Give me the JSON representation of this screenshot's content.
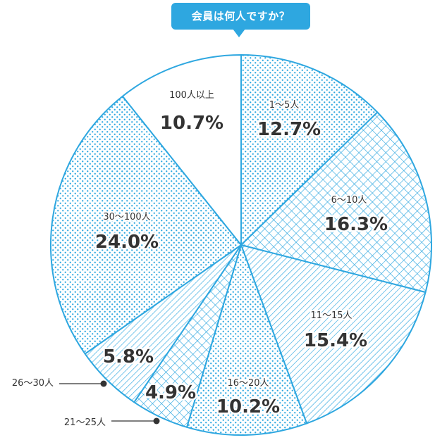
{
  "question": "会員は何人ですか？",
  "colors": {
    "accent": "#2ea7e0",
    "text": "#333333",
    "background": "#ffffff"
  },
  "chart_data": {
    "type": "pie",
    "title": "",
    "slices": [
      {
        "label": "1〜5人",
        "value": 12.7,
        "display": "12.7%",
        "pattern": "dots"
      },
      {
        "label": "6〜10人",
        "value": 16.3,
        "display": "16.3%",
        "pattern": "crosshatch"
      },
      {
        "label": "11〜15人",
        "value": 15.4,
        "display": "15.4%",
        "pattern": "diagonal"
      },
      {
        "label": "16〜20人",
        "value": 10.2,
        "display": "10.2%",
        "pattern": "dots"
      },
      {
        "label": "21〜25人",
        "value": 4.9,
        "display": "4.9%",
        "pattern": "crosshatch"
      },
      {
        "label": "26〜30人",
        "value": 5.8,
        "display": "5.8%",
        "pattern": "diagonal"
      },
      {
        "label": "30〜100人",
        "value": 24.0,
        "display": "24.0%",
        "pattern": "dots"
      },
      {
        "label": "100人以上",
        "value": 10.7,
        "display": "10.7%",
        "pattern": "none"
      }
    ]
  }
}
